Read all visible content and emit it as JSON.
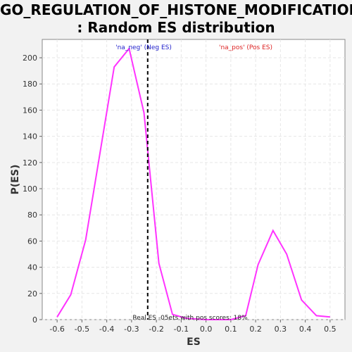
{
  "chart_data": {
    "type": "line",
    "title_line1": "GO_REGULATION_OF_HISTONE_MODIFICATION",
    "title_line2": ": Random ES distribution",
    "xlabel": "ES",
    "ylabel": "P(ES)",
    "xlim": [
      -0.66,
      0.56
    ],
    "ylim": [
      0,
      214
    ],
    "xticks": [
      -0.6,
      -0.5,
      -0.4,
      -0.3,
      -0.2,
      -0.1,
      0.0,
      0.1,
      0.2,
      0.3,
      0.4,
      0.5
    ],
    "xtick_labels": [
      "-0.6",
      "-0.5",
      "-0.4",
      "-0.3",
      "-0.2",
      "-0.1",
      "0.0",
      "0.1",
      "0.2",
      "0.3",
      "0.4",
      "0.5"
    ],
    "yticks": [
      0,
      20,
      40,
      60,
      80,
      100,
      120,
      140,
      160,
      180,
      200
    ],
    "ytick_labels": [
      "0",
      "20",
      "40",
      "60",
      "80",
      "100",
      "120",
      "140",
      "160",
      "180",
      "200"
    ],
    "grid": true,
    "series": [
      {
        "color": "#ff33ff",
        "x": [
          -0.6,
          -0.545,
          -0.485,
          -0.37,
          -0.31,
          -0.25,
          -0.19,
          -0.135,
          -0.08,
          0.0,
          0.1,
          0.16,
          0.21,
          0.27,
          0.325,
          0.385,
          0.445,
          0.5
        ],
        "y": [
          2,
          19,
          61,
          193,
          207,
          158,
          43,
          4,
          1,
          0,
          0,
          3,
          42,
          68,
          50,
          15,
          3,
          2
        ]
      }
    ],
    "vline": {
      "x": -0.235,
      "color": "#000000",
      "style": "dashed"
    },
    "annotations": {
      "neg_label": "'na_neg' (Neg ES)",
      "neg_color": "#2222cc",
      "pos_label": "'na_pos' (Pos ES)",
      "pos_color": "#dd2222",
      "bottom_text": "Real ES -05ets with pos scores: 18%"
    }
  }
}
